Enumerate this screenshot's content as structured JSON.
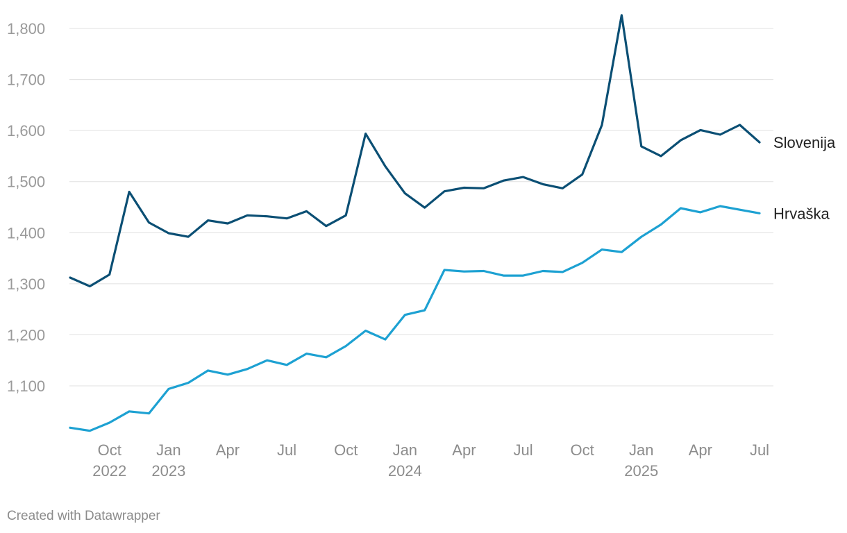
{
  "chart_data": {
    "type": "line",
    "title": "",
    "xlabel": "",
    "ylabel": "",
    "ylim": [
      1000,
      1830
    ],
    "yticks": [
      1100,
      1200,
      1300,
      1400,
      1500,
      1600,
      1700,
      1800
    ],
    "ytick_labels": [
      "1,100",
      "1,200",
      "1,300",
      "1,400",
      "1,500",
      "1,600",
      "1,700",
      "1,800"
    ],
    "grid": true,
    "x": [
      "2022-08",
      "2022-09",
      "2022-10",
      "2022-11",
      "2022-12",
      "2023-01",
      "2023-02",
      "2023-03",
      "2023-04",
      "2023-05",
      "2023-06",
      "2023-07",
      "2023-08",
      "2023-09",
      "2023-10",
      "2023-11",
      "2023-12",
      "2024-01",
      "2024-02",
      "2024-03",
      "2024-04",
      "2024-05",
      "2024-06",
      "2024-07",
      "2024-08",
      "2024-09",
      "2024-10",
      "2024-11",
      "2024-12",
      "2025-01",
      "2025-02",
      "2025-03",
      "2025-04",
      "2025-05",
      "2025-06",
      "2025-07"
    ],
    "xticks": [
      {
        "index": 2,
        "line1": "Oct",
        "line2": "2022"
      },
      {
        "index": 5,
        "line1": "Jan",
        "line2": "2023"
      },
      {
        "index": 8,
        "line1": "Apr",
        "line2": ""
      },
      {
        "index": 11,
        "line1": "Jul",
        "line2": ""
      },
      {
        "index": 14,
        "line1": "Oct",
        "line2": ""
      },
      {
        "index": 17,
        "line1": "Jan",
        "line2": "2024"
      },
      {
        "index": 20,
        "line1": "Apr",
        "line2": ""
      },
      {
        "index": 23,
        "line1": "Jul",
        "line2": ""
      },
      {
        "index": 26,
        "line1": "Oct",
        "line2": ""
      },
      {
        "index": 29,
        "line1": "Jan",
        "line2": "2025"
      },
      {
        "index": 32,
        "line1": "Apr",
        "line2": ""
      },
      {
        "index": 35,
        "line1": "Jul",
        "line2": ""
      }
    ],
    "series": [
      {
        "name": "Slovenija",
        "color": "#0b4f74",
        "values": [
          1312,
          1295,
          1318,
          1480,
          1420,
          1399,
          1392,
          1424,
          1418,
          1434,
          1432,
          1428,
          1442,
          1413,
          1434,
          1594,
          1530,
          1477,
          1449,
          1481,
          1488,
          1487,
          1502,
          1509,
          1495,
          1487,
          1514,
          1611,
          1826,
          1569,
          1550,
          1581,
          1601,
          1592,
          1611,
          1577
        ]
      },
      {
        "name": "Hrvaška",
        "color": "#1da1d2",
        "values": [
          1018,
          1012,
          1028,
          1050,
          1046,
          1094,
          1106,
          1130,
          1122,
          1133,
          1150,
          1141,
          1163,
          1156,
          1178,
          1208,
          1191,
          1239,
          1248,
          1327,
          1324,
          1325,
          1316,
          1316,
          1325,
          1323,
          1341,
          1367,
          1362,
          1392,
          1416,
          1448,
          1440,
          1452,
          1445,
          1438
        ]
      }
    ]
  },
  "footer": {
    "credit": "Created with Datawrapper"
  }
}
